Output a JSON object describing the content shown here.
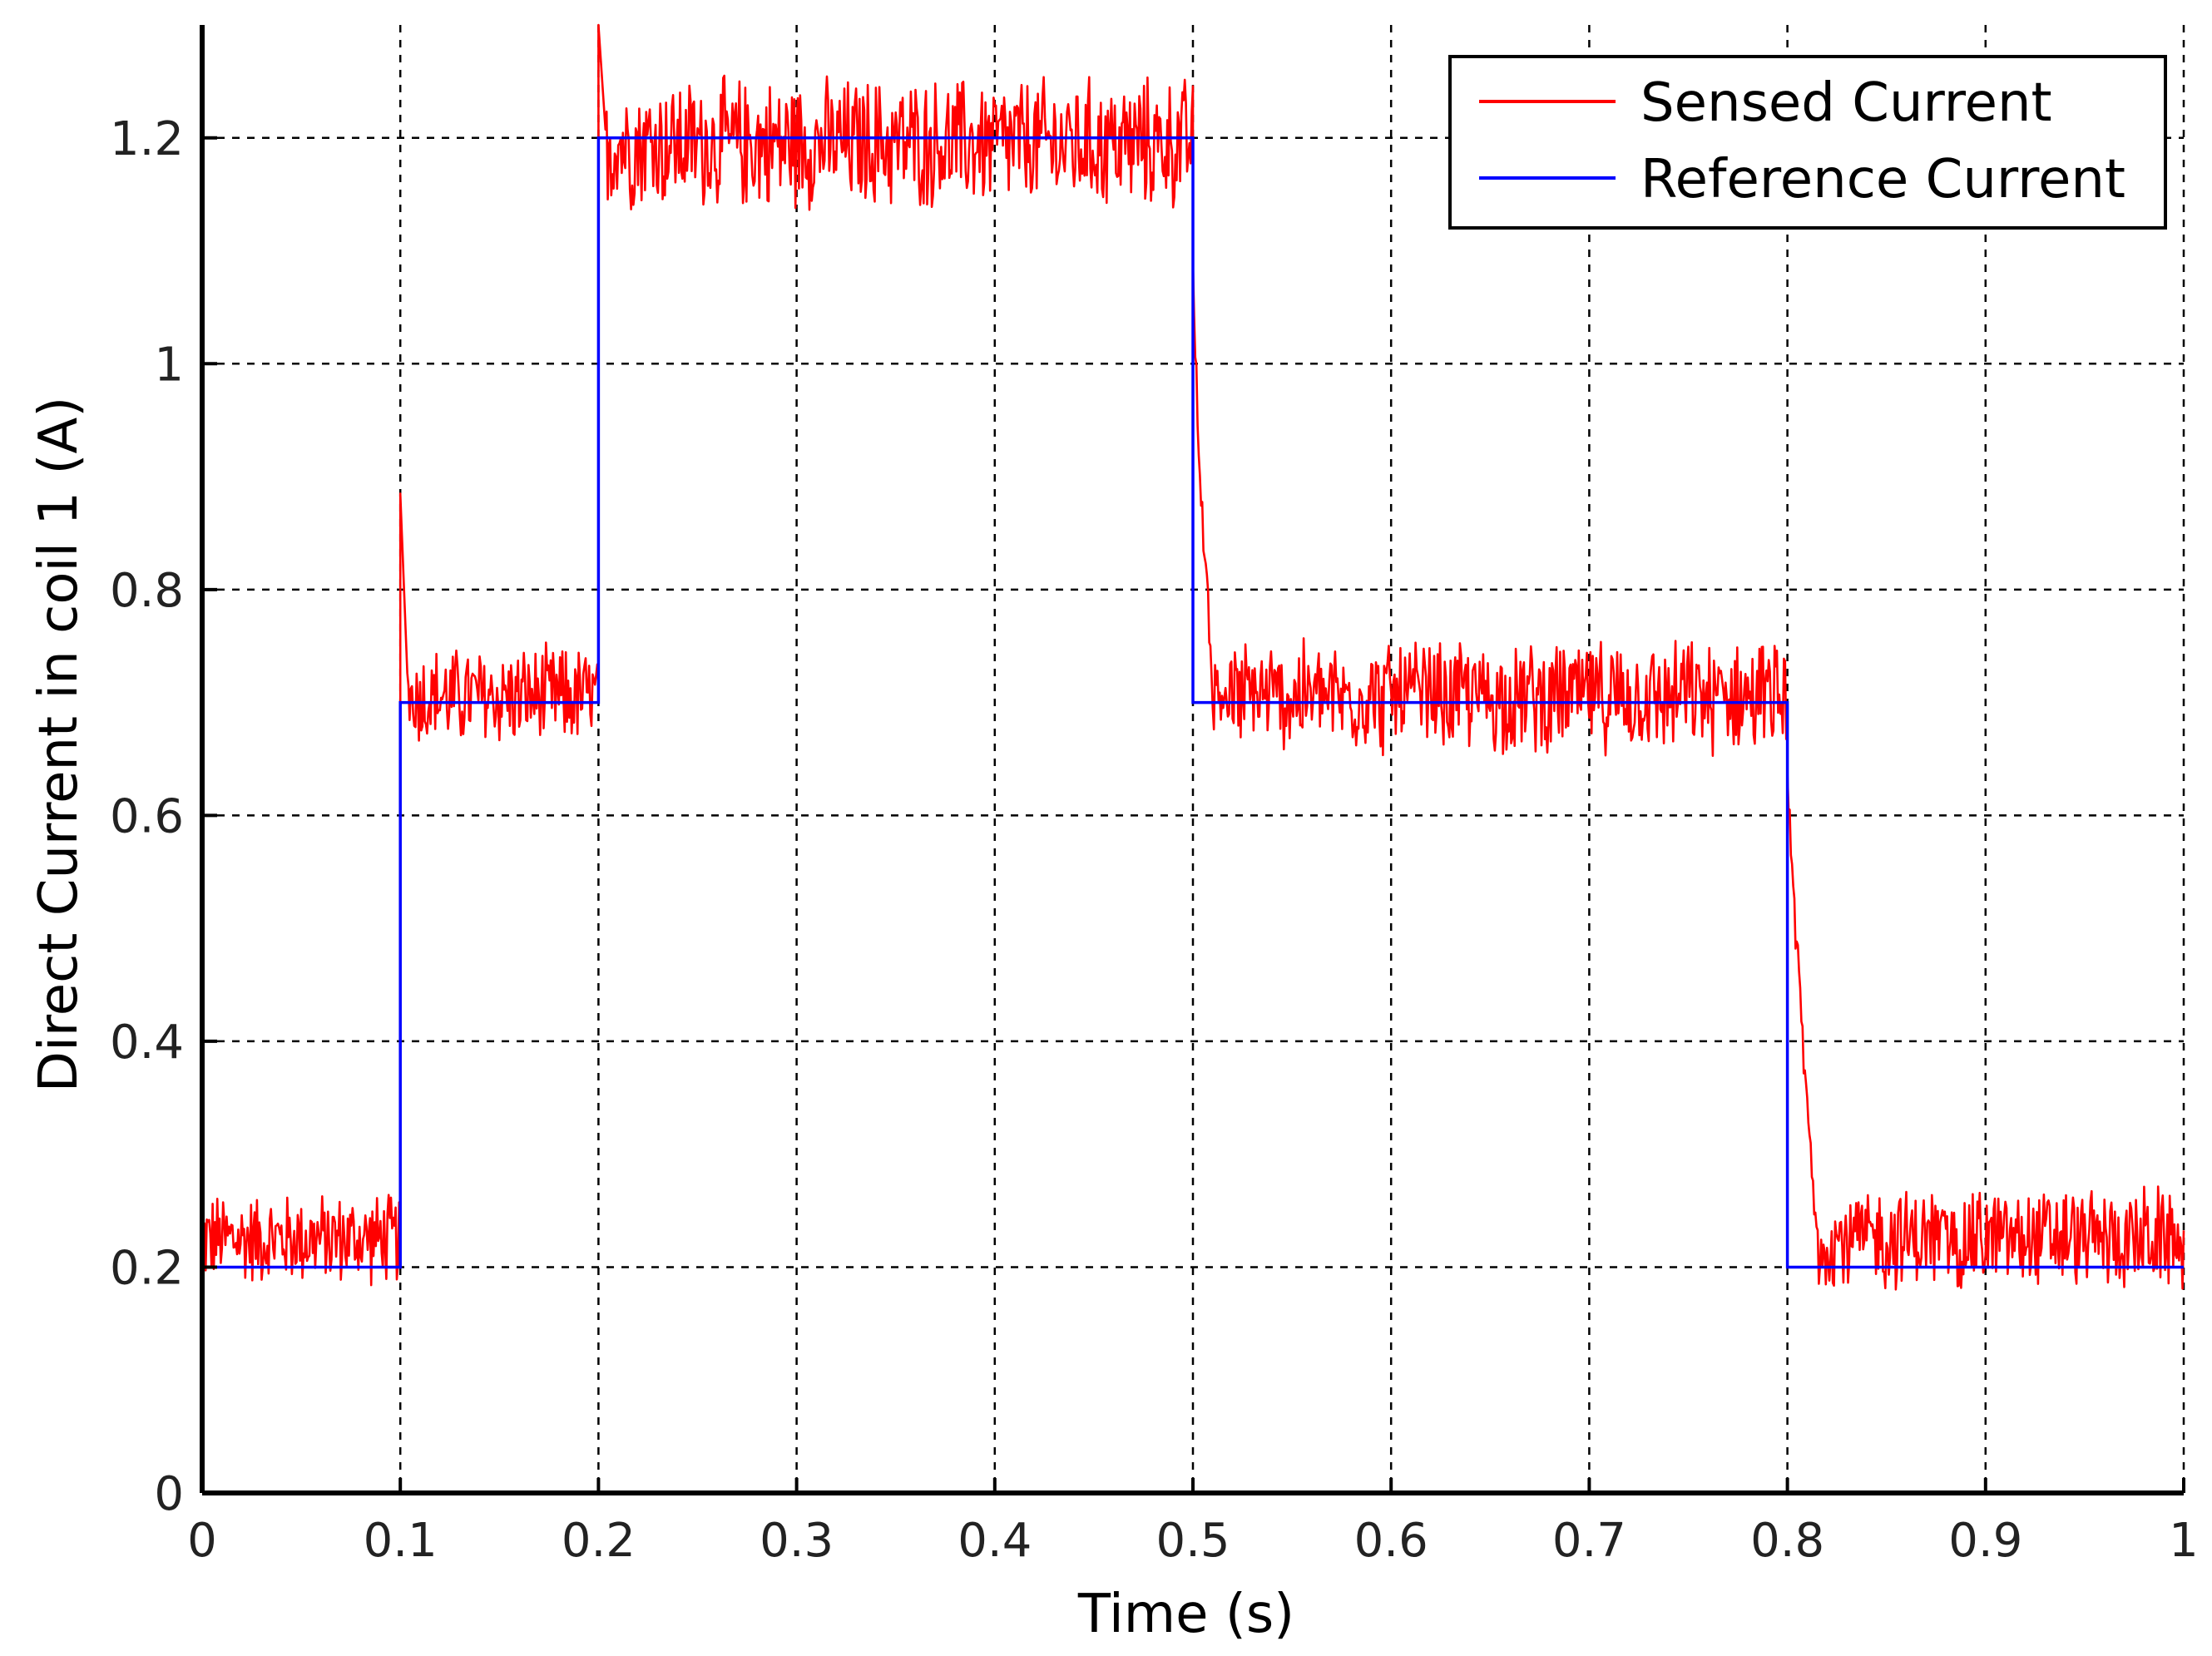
{
  "chart_data": {
    "type": "line",
    "title": "",
    "xlabel": "Time (s)",
    "ylabel": "Direct Current in coil 1 (A)",
    "xlim": [
      0,
      1
    ],
    "ylim": [
      0,
      1.3
    ],
    "x_ticks": [
      0,
      0.1,
      0.2,
      0.3,
      0.4,
      0.5,
      0.6,
      0.7,
      0.8,
      0.9,
      1
    ],
    "x_tick_labels": [
      "0",
      "0.1",
      "0.2",
      "0.3",
      "0.4",
      "0.5",
      "0.6",
      "0.7",
      "0.8",
      "0.9",
      "1"
    ],
    "y_ticks": [
      0,
      0.2,
      0.4,
      0.6,
      0.8,
      1,
      1.2
    ],
    "y_tick_labels": [
      "0",
      "0.2",
      "0.4",
      "0.6",
      "0.8",
      "1",
      "1.2"
    ],
    "grid": true,
    "legend_position": "top-right",
    "series": [
      {
        "name": "Sensed Current",
        "color": "#ff0000",
        "segments": [
          {
            "x_start": 0.0,
            "x_end": 0.1,
            "mean": 0.225,
            "noise": 0.045
          },
          {
            "x_start": 0.1,
            "x_end": 0.2,
            "mean": 0.705,
            "noise": 0.05,
            "spike": 0.885
          },
          {
            "x_start": 0.2,
            "x_end": 0.5,
            "mean": 1.195,
            "noise": 0.065,
            "spike": 1.3
          },
          {
            "x_start": 0.5,
            "x_end": 0.8,
            "mean": 0.705,
            "noise": 0.055,
            "spike": 1.08,
            "decay_to": 0.51
          },
          {
            "x_start": 0.8,
            "x_end": 1.0,
            "mean": 0.225,
            "noise": 0.05,
            "spike": 0.65,
            "decay_to": 0.815
          }
        ]
      },
      {
        "name": "Reference Current",
        "color": "#0000ff",
        "x": [
          0,
          0.1,
          0.1,
          0.2,
          0.2,
          0.5,
          0.5,
          0.8,
          0.8,
          1.0
        ],
        "y": [
          0.2,
          0.2,
          0.7,
          0.7,
          1.2,
          1.2,
          0.7,
          0.7,
          0.2,
          0.2
        ]
      }
    ]
  }
}
